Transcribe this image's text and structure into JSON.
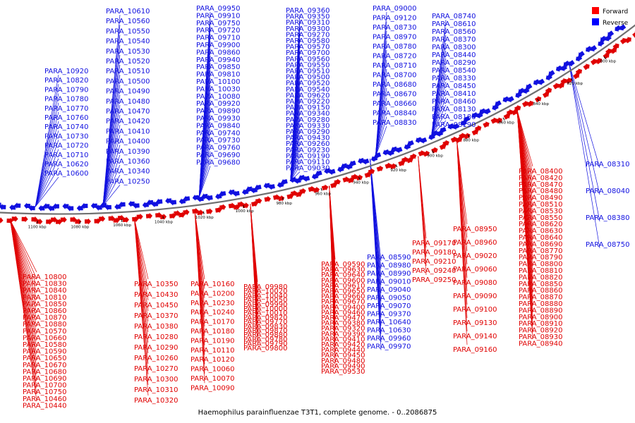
{
  "caption": "Haemophilus parainfluenzae T3T1, complete genome. - 0..2086875",
  "legend": [
    {
      "label": "Forward",
      "color": "#ff0000"
    },
    {
      "label": "Reverse",
      "color": "#0000ff"
    }
  ],
  "colors": {
    "forward": "#e00000",
    "reverse": "#1010e0",
    "backbone": "#707070"
  },
  "ticks": [
    {
      "label": "1100 kbp",
      "pos": 0
    },
    {
      "label": "1080 kbp",
      "pos": 20
    },
    {
      "label": "1060 kbp",
      "pos": 40
    },
    {
      "label": "1040 kbp",
      "pos": 60
    },
    {
      "label": "1020 kbp",
      "pos": 80
    },
    {
      "label": "1000 kbp",
      "pos": 100
    },
    {
      "label": "980 kbp",
      "pos": 120
    },
    {
      "label": "960 kbp",
      "pos": 140
    },
    {
      "label": "940 kbp",
      "pos": 160
    },
    {
      "label": "920 kbp",
      "pos": 180
    },
    {
      "label": "900 kbp",
      "pos": 200
    },
    {
      "label": "880 kbp",
      "pos": 220
    },
    {
      "label": "860 kbp",
      "pos": 240
    },
    {
      "label": "840 kbp",
      "pos": 260
    },
    {
      "label": "820 kbp",
      "pos": 280
    },
    {
      "label": "800 kbp",
      "pos": 300
    }
  ],
  "reverse_labels": [
    "PARA_10610",
    "PARA_10560",
    "PARA_10550",
    "PARA_10540",
    "PARA_10530",
    "PARA_10520",
    "PARA_10510",
    "PARA_10500",
    "PARA_10490",
    "PARA_10480",
    "PARA_10470",
    "PARA_10420",
    "PARA_10410",
    "PARA_10400",
    "PARA_10390",
    "PARA_10360",
    "PARA_10340",
    "PARA_10250",
    "PARA_10920",
    "PARA_10820",
    "PARA_10790",
    "PARA_10780",
    "PARA_10770",
    "PARA_10760",
    "PARA_10740",
    "PARA_10730",
    "PARA_10720",
    "PARA_10710",
    "PARA_10620",
    "PARA_10600",
    "PARA_09950",
    "PARA_09910",
    "PARA_09750",
    "PARA_09720",
    "PARA_09710",
    "PARA_09900",
    "PARA_09860",
    "PARA_09940",
    "PARA_09850",
    "PARA_09810",
    "PARA_10100",
    "PARA_10030",
    "PARA_10080",
    "PARA_09920",
    "PARA_09890",
    "PARA_09930",
    "PARA_09840",
    "PARA_09740",
    "PARA_09730",
    "PARA_09760",
    "PARA_09690",
    "PARA_09680",
    "PARA_09360",
    "PARA_09350",
    "PARA_09310",
    "PARA_09300",
    "PARA_09270",
    "PARA_09580",
    "PARA_09570",
    "PARA_09700",
    "PARA_09560",
    "PARA_09550",
    "PARA_09510",
    "PARA_09500",
    "PARA_09520",
    "PARA_09540",
    "PARA_09620",
    "PARA_09220",
    "PARA_09150",
    "PARA_09340",
    "PARA_09280",
    "PARA_09330",
    "PARA_09290",
    "PARA_09430",
    "PARA_09260",
    "PARA_09230",
    "PARA_09190",
    "PARA_09110",
    "PARA_09030",
    "PARA_09000",
    "PARA_09120",
    "PARA_08730",
    "PARA_08970",
    "PARA_08780",
    "PARA_08720",
    "PARA_08710",
    "PARA_08700",
    "PARA_08680",
    "PARA_08670",
    "PARA_08660",
    "PARA_08840",
    "PARA_08830",
    "PARA_08740",
    "PARA_08610",
    "PARA_08560",
    "PARA_08370",
    "PARA_08300",
    "PARA_08440",
    "PARA_08290",
    "PARA_08540",
    "PARA_08330",
    "PARA_08450",
    "PARA_08410",
    "PARA_08460",
    "PARA_08130",
    "PARA_08180",
    "PARA_08190",
    "PARA_08310",
    "PARA_08040",
    "PARA_08380",
    "PARA_08750",
    "PARA_08590",
    "PARA_08980",
    "PARA_08990",
    "PARA_09010",
    "PARA_09040",
    "PARA_09050",
    "PARA_09070",
    "PARA_09370",
    "PARA_10640",
    "PARA_10630",
    "PARA_09960",
    "PARA_09970"
  ],
  "forward_labels": [
    "PARA_10800",
    "PARA_10830",
    "PARA_10840",
    "PARA_10810",
    "PARA_10850",
    "PARA_10860",
    "PARA_10870",
    "PARA_10880",
    "PARA_10570",
    "PARA_10660",
    "PARA_10580",
    "PARA_10590",
    "PARA_10650",
    "PARA_10670",
    "PARA_10680",
    "PARA_10690",
    "PARA_10700",
    "PARA_10750",
    "PARA_10460",
    "PARA_10440",
    "PARA_10350",
    "PARA_10430",
    "PARA_10450",
    "PARA_10370",
    "PARA_10380",
    "PARA_10280",
    "PARA_10290",
    "PARA_10260",
    "PARA_10270",
    "PARA_10300",
    "PARA_10310",
    "PARA_10320",
    "PARA_10160",
    "PARA_10200",
    "PARA_10230",
    "PARA_10240",
    "PARA_10170",
    "PARA_10180",
    "PARA_10190",
    "PARA_10110",
    "PARA_10120",
    "PARA_10060",
    "PARA_10070",
    "PARA_10090",
    "PARA_09980",
    "PARA_10020",
    "PARA_10040",
    "PARA_10050",
    "PARA_09990",
    "PARA_10000",
    "PARA_10010",
    "PARA_09820",
    "PARA_09770",
    "PARA_09830",
    "PARA_09870",
    "PARA_09880",
    "PARA_09780",
    "PARA_09790",
    "PARA_09800",
    "PARA_09590",
    "PARA_09630",
    "PARA_09640",
    "PARA_09600",
    "PARA_09610",
    "PARA_09650",
    "PARA_09660",
    "PARA_09670",
    "PARA_09400",
    "PARA_09460",
    "PARA_09470",
    "PARA_09380",
    "PARA_09320",
    "PARA_09390",
    "PARA_09410",
    "PARA_09420",
    "PARA_09440",
    "PARA_09450",
    "PARA_09480",
    "PARA_09490",
    "PARA_09530",
    "PARA_09170",
    "PARA_09180",
    "PARA_09210",
    "PARA_09240",
    "PARA_09250",
    "PARA_08950",
    "PARA_08960",
    "PARA_09020",
    "PARA_09060",
    "PARA_09080",
    "PARA_09090",
    "PARA_09100",
    "PARA_09130",
    "PARA_09140",
    "PARA_09160",
    "PARA_08400",
    "PARA_08420",
    "PARA_08470",
    "PARA_08480",
    "PARA_08490",
    "PARA_08510",
    "PARA_08530",
    "PARA_08550",
    "PARA_08620",
    "PARA_08630",
    "PARA_08640",
    "PARA_08690",
    "PARA_08770",
    "PARA_08790",
    "PARA_08800",
    "PARA_08810",
    "PARA_08820",
    "PARA_08850",
    "PARA_08860",
    "PARA_08870",
    "PARA_08880",
    "PARA_08890",
    "PARA_08900",
    "PARA_08910",
    "PARA_08920",
    "PARA_08930",
    "PARA_08940"
  ]
}
